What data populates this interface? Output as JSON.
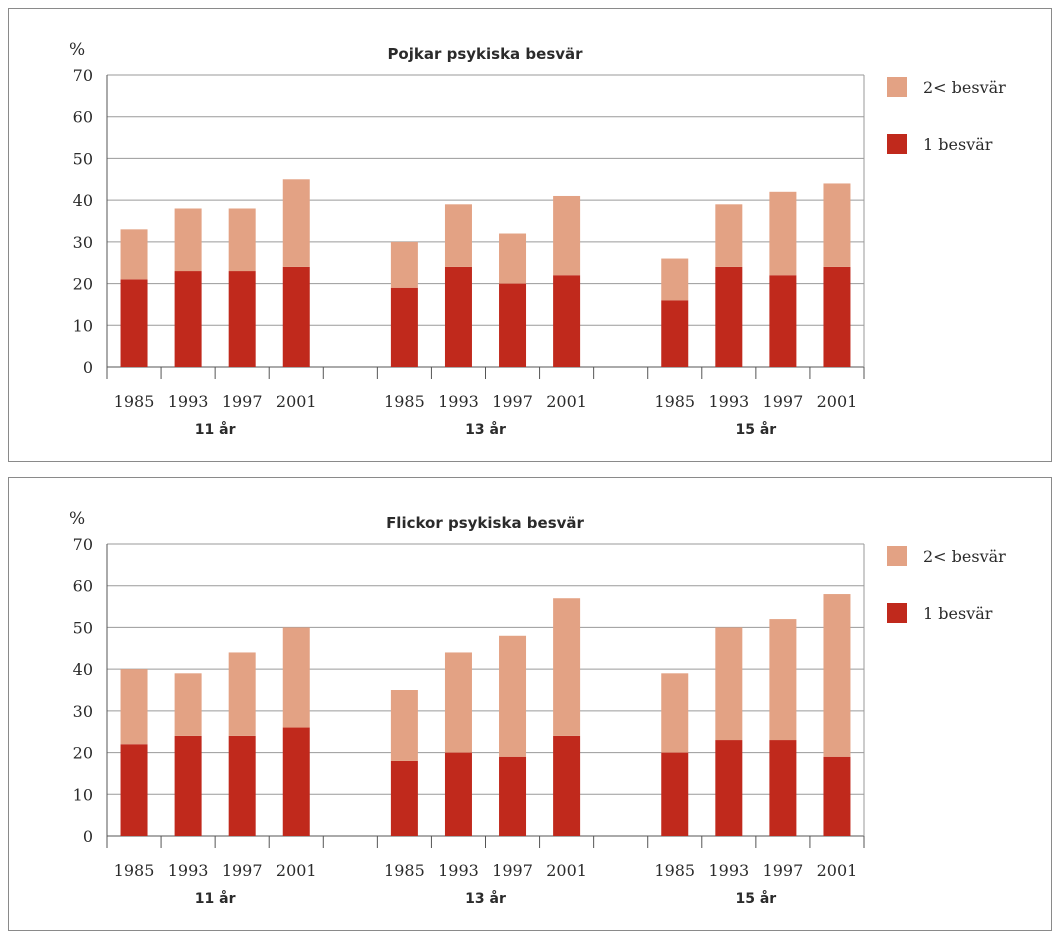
{
  "chart_data": [
    {
      "type": "bar",
      "stacked": true,
      "title": "Pojkar psykiska besvär",
      "ylabel": "%",
      "ylim": [
        0,
        70
      ],
      "yticks": [
        0,
        10,
        20,
        30,
        40,
        50,
        60,
        70
      ],
      "grid": true,
      "legend_position": "right",
      "groups": [
        {
          "label": "11 år",
          "categories": [
            "1985",
            "1993",
            "1997",
            "2001"
          ]
        },
        {
          "label": "13 år",
          "categories": [
            "1985",
            "1993",
            "1997",
            "2001"
          ]
        },
        {
          "label": "15 år",
          "categories": [
            "1985",
            "1993",
            "1997",
            "2001"
          ]
        }
      ],
      "series": [
        {
          "name": "1 besvär",
          "color": "#c0291c",
          "values": [
            21,
            23,
            23,
            24,
            19,
            24,
            20,
            22,
            16,
            24,
            22,
            24
          ]
        },
        {
          "name": "2< besvär",
          "color": "#e3a284",
          "values": [
            12,
            15,
            15,
            21,
            11,
            15,
            12,
            19,
            10,
            15,
            20,
            20
          ]
        }
      ],
      "legend_order": [
        "2< besvär",
        "1 besvär"
      ]
    },
    {
      "type": "bar",
      "stacked": true,
      "title": "Flickor psykiska besvär",
      "ylabel": "%",
      "ylim": [
        0,
        70
      ],
      "yticks": [
        0,
        10,
        20,
        30,
        40,
        50,
        60,
        70
      ],
      "grid": true,
      "legend_position": "right",
      "groups": [
        {
          "label": "11 år",
          "categories": [
            "1985",
            "1993",
            "1997",
            "2001"
          ]
        },
        {
          "label": "13 år",
          "categories": [
            "1985",
            "1993",
            "1997",
            "2001"
          ]
        },
        {
          "label": "15 år",
          "categories": [
            "1985",
            "1993",
            "1997",
            "2001"
          ]
        }
      ],
      "series": [
        {
          "name": "1 besvär",
          "color": "#c0291c",
          "values": [
            22,
            24,
            24,
            26,
            18,
            20,
            19,
            24,
            20,
            23,
            23,
            19
          ]
        },
        {
          "name": "2< besvär",
          "color": "#e3a284",
          "values": [
            18,
            15,
            20,
            24,
            17,
            24,
            29,
            33,
            19,
            27,
            29,
            39
          ]
        }
      ],
      "legend_order": [
        "2< besvär",
        "1 besvär"
      ]
    }
  ]
}
